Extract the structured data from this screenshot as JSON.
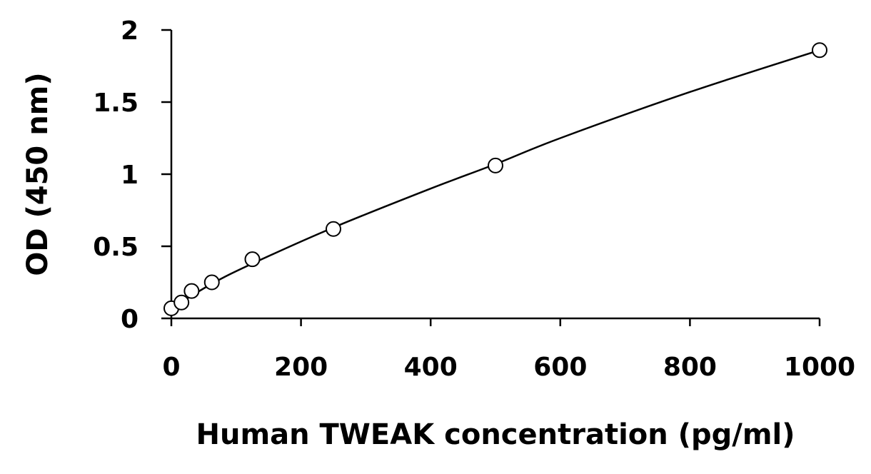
{
  "chart_data": {
    "type": "scatter",
    "title": "",
    "xlabel": "Human TWEAK concentration (pg/ml)",
    "ylabel": "OD (450 nm)",
    "xlim": [
      0,
      1000
    ],
    "ylim": [
      0,
      2
    ],
    "x_ticks": [
      0,
      200,
      400,
      600,
      800,
      1000
    ],
    "y_ticks": [
      0,
      0.5,
      1,
      1.5,
      2
    ],
    "x_tick_labels": [
      "0",
      "200",
      "400",
      "600",
      "800",
      "1000"
    ],
    "y_tick_labels": [
      "0",
      "0.5",
      "1",
      "1.5",
      "2"
    ],
    "grid": false,
    "legend": "none",
    "series": [
      {
        "marker": "open-circle",
        "points": [
          {
            "x": 0,
            "y": 0.07
          },
          {
            "x": 15.6,
            "y": 0.11
          },
          {
            "x": 31.25,
            "y": 0.19
          },
          {
            "x": 62.5,
            "y": 0.25
          },
          {
            "x": 125,
            "y": 0.41
          },
          {
            "x": 250,
            "y": 0.62
          },
          {
            "x": 500,
            "y": 1.06
          },
          {
            "x": 1000,
            "y": 1.86
          }
        ],
        "fit_curve": [
          {
            "x": 0,
            "y": 0.07
          },
          {
            "x": 62.5,
            "y": 0.24
          },
          {
            "x": 125,
            "y": 0.38
          },
          {
            "x": 250,
            "y": 0.63
          },
          {
            "x": 400,
            "y": 0.9
          },
          {
            "x": 500,
            "y": 1.07
          },
          {
            "x": 600,
            "y": 1.25
          },
          {
            "x": 800,
            "y": 1.57
          },
          {
            "x": 1000,
            "y": 1.86
          }
        ]
      }
    ]
  }
}
